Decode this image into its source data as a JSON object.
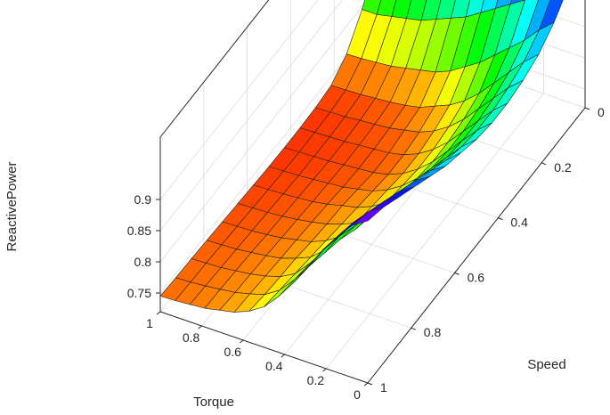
{
  "chart_data": {
    "type": "surface",
    "title": "",
    "xlabel": "Torque",
    "ylabel": "Speed",
    "zlabel": "ReactivePower",
    "xlim": [
      0,
      1
    ],
    "ylim": [
      0,
      1
    ],
    "zlim": [
      0.72,
      1.0
    ],
    "xticks": [
      "0",
      "0.2",
      "0.4",
      "0.6",
      "0.8",
      "1"
    ],
    "yticks": [
      "0",
      "0.2",
      "0.4",
      "0.6",
      "0.8",
      "1"
    ],
    "zticks": [
      "0.75",
      "0.8",
      "0.85",
      "0.9"
    ],
    "grid": true,
    "colormap": "hsv",
    "torque": [
      0,
      0.0714,
      0.1429,
      0.2143,
      0.2857,
      0.3571,
      0.4286,
      0.5,
      0.5714,
      0.6429,
      0.7143,
      0.7857,
      0.8571,
      0.9286,
      1
    ],
    "speed": [
      0,
      0.0714,
      0.1429,
      0.2143,
      0.2857,
      0.3571,
      0.4286,
      0.5,
      0.5714,
      0.6429,
      0.7143,
      0.7857,
      0.8571,
      0.9286,
      1
    ],
    "reactive_power": [
      [
        0.98,
        0.95,
        0.92,
        0.9,
        0.89,
        0.885,
        0.885,
        0.89,
        0.9,
        0.91,
        0.925,
        0.94,
        0.955,
        0.97,
        0.98
      ],
      [
        0.97,
        0.935,
        0.9,
        0.88,
        0.87,
        0.865,
        0.865,
        0.87,
        0.88,
        0.895,
        0.91,
        0.925,
        0.94,
        0.955,
        0.965
      ],
      [
        0.96,
        0.915,
        0.875,
        0.855,
        0.845,
        0.84,
        0.84,
        0.845,
        0.855,
        0.87,
        0.885,
        0.9,
        0.915,
        0.93,
        0.94
      ],
      [
        0.95,
        0.9,
        0.855,
        0.83,
        0.82,
        0.815,
        0.815,
        0.82,
        0.83,
        0.845,
        0.86,
        0.875,
        0.89,
        0.9,
        0.91
      ],
      [
        0.94,
        0.885,
        0.835,
        0.805,
        0.795,
        0.79,
        0.79,
        0.795,
        0.805,
        0.815,
        0.83,
        0.845,
        0.86,
        0.87,
        0.875
      ],
      [
        0.93,
        0.87,
        0.815,
        0.785,
        0.775,
        0.77,
        0.77,
        0.775,
        0.78,
        0.79,
        0.8,
        0.815,
        0.825,
        0.835,
        0.84
      ],
      [
        0.92,
        0.855,
        0.8,
        0.77,
        0.76,
        0.755,
        0.755,
        0.76,
        0.765,
        0.77,
        0.78,
        0.79,
        0.8,
        0.805,
        0.81
      ],
      [
        0.91,
        0.84,
        0.785,
        0.76,
        0.75,
        0.745,
        0.745,
        0.75,
        0.755,
        0.76,
        0.765,
        0.77,
        0.775,
        0.78,
        0.785
      ],
      [
        0.9,
        0.83,
        0.775,
        0.75,
        0.745,
        0.74,
        0.74,
        0.745,
        0.75,
        0.752,
        0.755,
        0.76,
        0.762,
        0.765,
        0.77
      ],
      [
        0.89,
        0.82,
        0.77,
        0.745,
        0.74,
        0.738,
        0.738,
        0.74,
        0.744,
        0.747,
        0.75,
        0.752,
        0.755,
        0.758,
        0.76
      ],
      [
        0.88,
        0.81,
        0.765,
        0.742,
        0.738,
        0.736,
        0.736,
        0.738,
        0.74,
        0.743,
        0.745,
        0.748,
        0.75,
        0.752,
        0.755
      ],
      [
        0.87,
        0.805,
        0.76,
        0.74,
        0.736,
        0.734,
        0.734,
        0.736,
        0.738,
        0.74,
        0.742,
        0.745,
        0.747,
        0.749,
        0.75
      ],
      [
        0.86,
        0.8,
        0.758,
        0.738,
        0.734,
        0.733,
        0.733,
        0.734,
        0.736,
        0.738,
        0.74,
        0.742,
        0.744,
        0.746,
        0.748
      ],
      [
        0.85,
        0.795,
        0.756,
        0.737,
        0.733,
        0.732,
        0.732,
        0.733,
        0.735,
        0.737,
        0.739,
        0.741,
        0.743,
        0.744,
        0.746
      ],
      [
        0.85,
        0.795,
        0.755,
        0.736,
        0.732,
        0.731,
        0.731,
        0.732,
        0.734,
        0.736,
        0.738,
        0.74,
        0.742,
        0.743,
        0.745
      ]
    ]
  }
}
